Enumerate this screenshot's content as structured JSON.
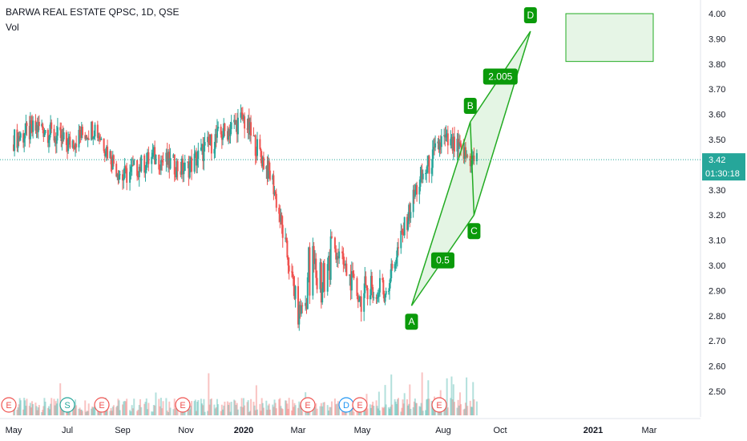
{
  "header": {
    "title": "BARWA REAL ESTATE QPSC, 1D, QSE",
    "volume_label": "Vol"
  },
  "colors": {
    "up": "#26a69a",
    "down": "#ef5350",
    "pattern": "#22ab22",
    "label_bg": "#0a9a0a",
    "price_tag": "#26a69a",
    "target_box": "#e6f5e6"
  },
  "price_axis": {
    "ticks": [
      "4.00",
      "3.90",
      "3.80",
      "3.70",
      "3.60",
      "3.50",
      "3.40",
      "3.30",
      "3.20",
      "3.10",
      "3.00",
      "2.90",
      "2.80",
      "2.70",
      "2.60",
      "2.50"
    ]
  },
  "time_axis": {
    "labels": [
      "May",
      "Jul",
      "Sep",
      "Nov",
      "2020",
      "Mar",
      "May",
      "Aug",
      "Oct",
      "2021",
      "Mar"
    ],
    "bold": [
      "2020",
      "2021"
    ]
  },
  "current": {
    "price": "3.42",
    "countdown": "01:30:18"
  },
  "events": {
    "markers": [
      "E",
      "S",
      "E",
      "E",
      "E",
      "D",
      "E",
      "E"
    ]
  },
  "pattern": {
    "points": [
      {
        "label": "A",
        "date": "2020-06-26",
        "price": 2.84
      },
      {
        "label": "B",
        "date": "2020-08-30",
        "price": 3.57
      },
      {
        "label": "C",
        "date": "2020-09-03",
        "price": 3.2
      },
      {
        "label": "D",
        "date": "2020-10-31",
        "price": 3.93
      }
    ],
    "ratios": [
      "0.5",
      "2.005"
    ]
  },
  "chart_data": {
    "type": "candlestick",
    "title": "BARWA REAL ESTATE QPSC, 1D, QSE",
    "ylim": [
      2.45,
      4.03
    ],
    "grid": false,
    "current_price": 3.42,
    "key_closes": [
      {
        "x": "2019-05",
        "y": 3.5
      },
      {
        "x": "2019-06",
        "y": 3.55
      },
      {
        "x": "2019-07",
        "y": 3.48
      },
      {
        "x": "2019-08",
        "y": 3.55
      },
      {
        "x": "2019-09",
        "y": 3.35
      },
      {
        "x": "2019-10",
        "y": 3.43
      },
      {
        "x": "2019-11",
        "y": 3.38
      },
      {
        "x": "2019-12",
        "y": 3.5
      },
      {
        "x": "2020-01",
        "y": 3.58
      },
      {
        "x": "2020-02",
        "y": 3.35
      },
      {
        "x": "2020-03",
        "y": 2.8
      },
      {
        "x": "2020-04",
        "y": 3.1
      },
      {
        "x": "2020-05",
        "y": 2.85
      },
      {
        "x": "2020-06",
        "y": 2.95
      },
      {
        "x": "2020-07",
        "y": 3.3
      },
      {
        "x": "2020-08",
        "y": 3.5
      },
      {
        "x": "2020-09",
        "y": 3.42
      }
    ],
    "target_zone": {
      "price_low": 3.81,
      "price_high": 4.0
    }
  }
}
